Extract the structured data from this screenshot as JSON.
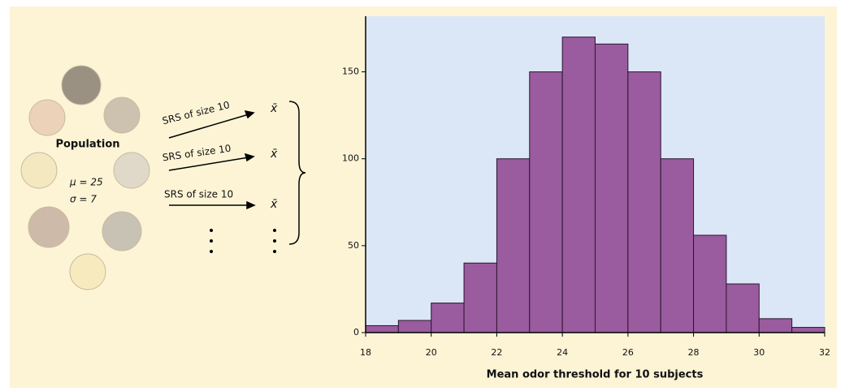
{
  "chart_data": {
    "type": "histogram",
    "xlabel": "Mean odor threshold for 10 subjects",
    "bins": [
      18,
      19,
      20,
      21,
      22,
      23,
      24,
      25,
      26,
      27,
      28,
      29,
      30,
      31,
      32
    ],
    "values": [
      4,
      7,
      17,
      40,
      100,
      150,
      170,
      166,
      150,
      100,
      56,
      28,
      8,
      3
    ],
    "color": "#9a5c9e",
    "xlim": [
      18,
      32
    ],
    "xticks": [
      18,
      20,
      22,
      24,
      26,
      28,
      30,
      32
    ],
    "ylim": [
      0,
      182
    ],
    "yticks": [
      0,
      50,
      100,
      150
    ]
  },
  "diagram": {
    "population_label": "Population",
    "mu": "μ = 25",
    "sigma": "σ = 7",
    "samples": [
      {
        "label": "SRS of size 10",
        "result": "x̄"
      },
      {
        "label": "SRS of size 10",
        "result": "x̄"
      },
      {
        "label": "SRS of size 10",
        "result": "x̄"
      }
    ]
  }
}
